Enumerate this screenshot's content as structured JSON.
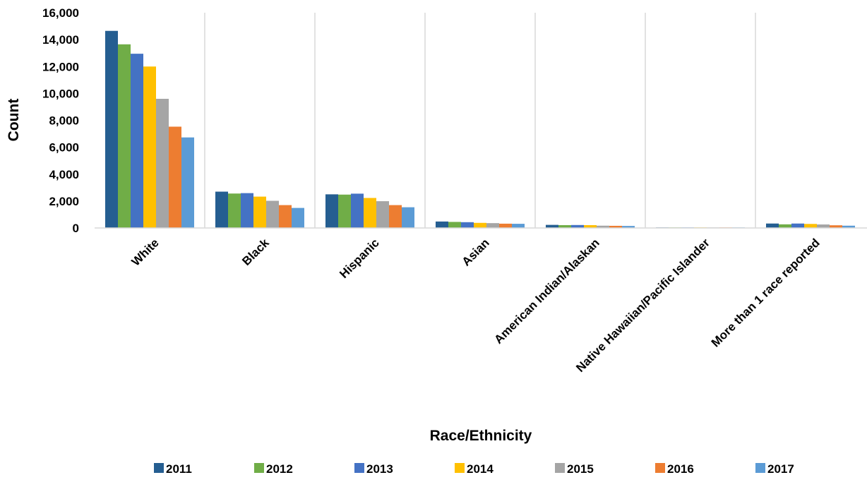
{
  "chart_data": {
    "type": "bar",
    "title": "",
    "xlabel": "Race/Ethnicity",
    "ylabel": "Count",
    "ylim": [
      0,
      16000
    ],
    "yticks": [
      0,
      2000,
      4000,
      6000,
      8000,
      10000,
      12000,
      14000,
      16000
    ],
    "ytick_labels": [
      "0",
      "2,000",
      "4,000",
      "6,000",
      "8,000",
      "10,000",
      "12,000",
      "14,000",
      "16,000"
    ],
    "grid": "vertical category separators",
    "legend_position": "bottom",
    "categories": [
      "White",
      "Black",
      "Hispanic",
      "Asian",
      "American Indian/Alaskan",
      "Native Hawaiian/Pacific Islander",
      "More than 1 race reported"
    ],
    "series": [
      {
        "name": "2011",
        "color": "#255E91",
        "values": [
          14650,
          2700,
          2500,
          480,
          230,
          40,
          330
        ]
      },
      {
        "name": "2012",
        "color": "#70AD47",
        "values": [
          13650,
          2560,
          2480,
          450,
          210,
          30,
          270
        ]
      },
      {
        "name": "2013",
        "color": "#4472C4",
        "values": [
          12950,
          2590,
          2550,
          430,
          220,
          30,
          330
        ]
      },
      {
        "name": "2014",
        "color": "#FFC000",
        "values": [
          12000,
          2330,
          2230,
          380,
          210,
          30,
          300
        ]
      },
      {
        "name": "2015",
        "color": "#A5A5A5",
        "values": [
          9600,
          2020,
          1990,
          360,
          170,
          30,
          260
        ]
      },
      {
        "name": "2016",
        "color": "#ED7D31",
        "values": [
          7530,
          1700,
          1700,
          320,
          160,
          30,
          200
        ]
      },
      {
        "name": "2017",
        "color": "#5B9BD5",
        "values": [
          6730,
          1490,
          1540,
          310,
          150,
          30,
          170
        ]
      }
    ]
  }
}
